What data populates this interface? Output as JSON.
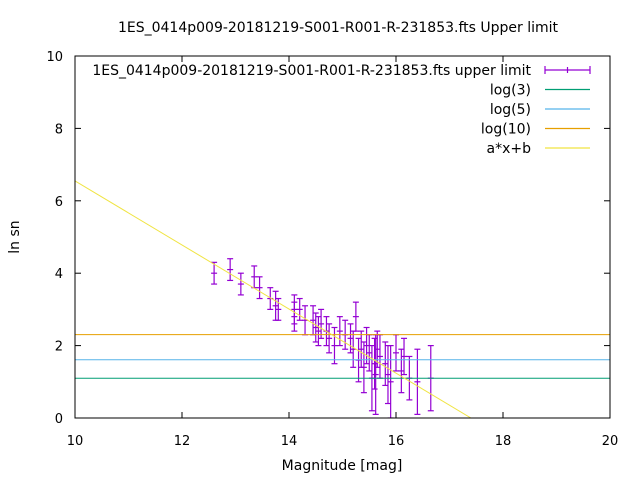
{
  "chart_data": {
    "type": "scatter",
    "title": "1ES_0414p009-20181219-S001-R001-R-231853.fts Upper limit",
    "xlabel": "Magnitude [mag]",
    "ylabel": "ln sn",
    "xlim": [
      10,
      20
    ],
    "ylim": [
      0,
      10
    ],
    "grid": false,
    "legend_placement": "top-right",
    "x_ticks": [
      "10",
      "12",
      "14",
      "16",
      "18",
      "20"
    ],
    "y_ticks": [
      "0",
      "2",
      "4",
      "6",
      "8",
      "10"
    ],
    "series": [
      {
        "name": "1ES_0414p009-20181219-S001-R001-R-231853.fts upper limit",
        "kind": "errorbar",
        "color": "#9400d3",
        "points": [
          [
            12.6,
            4.0,
            0.3
          ],
          [
            12.9,
            4.1,
            0.3
          ],
          [
            13.1,
            3.7,
            0.3
          ],
          [
            13.35,
            3.9,
            0.3
          ],
          [
            13.45,
            3.6,
            0.3
          ],
          [
            13.65,
            3.3,
            0.3
          ],
          [
            13.75,
            3.1,
            0.4
          ],
          [
            13.8,
            3.0,
            0.3
          ],
          [
            14.1,
            3.0,
            0.4
          ],
          [
            14.1,
            2.8,
            0.4
          ],
          [
            14.2,
            3.0,
            0.3
          ],
          [
            14.3,
            2.7,
            0.4
          ],
          [
            14.45,
            2.7,
            0.4
          ],
          [
            14.5,
            2.5,
            0.4
          ],
          [
            14.55,
            2.4,
            0.4
          ],
          [
            14.6,
            2.6,
            0.4
          ],
          [
            14.7,
            2.4,
            0.4
          ],
          [
            14.75,
            2.2,
            0.4
          ],
          [
            14.85,
            2.0,
            0.5
          ],
          [
            14.95,
            2.4,
            0.4
          ],
          [
            15.05,
            2.3,
            0.4
          ],
          [
            15.15,
            2.2,
            0.4
          ],
          [
            15.2,
            1.9,
            0.5
          ],
          [
            15.25,
            2.8,
            0.4
          ],
          [
            15.3,
            1.6,
            0.6
          ],
          [
            15.35,
            1.9,
            0.5
          ],
          [
            15.4,
            1.4,
            0.7
          ],
          [
            15.45,
            2.0,
            0.5
          ],
          [
            15.5,
            1.8,
            0.5
          ],
          [
            15.55,
            1.1,
            0.9
          ],
          [
            15.6,
            1.5,
            0.7
          ],
          [
            15.62,
            1.2,
            1.1
          ],
          [
            15.65,
            1.9,
            0.5
          ],
          [
            15.7,
            1.7,
            0.6
          ],
          [
            15.8,
            1.5,
            0.6
          ],
          [
            15.85,
            1.2,
            0.8
          ],
          [
            15.9,
            1.0,
            1.0
          ],
          [
            16.0,
            1.8,
            0.5
          ],
          [
            16.1,
            1.3,
            0.6
          ],
          [
            16.15,
            1.7,
            0.5
          ],
          [
            16.25,
            1.1,
            0.6
          ],
          [
            16.4,
            1.0,
            0.9
          ],
          [
            16.65,
            1.1,
            0.9
          ]
        ]
      },
      {
        "name": "log(3)",
        "kind": "hline",
        "color": "#009e73",
        "y": 1.0986
      },
      {
        "name": "log(5)",
        "kind": "hline",
        "color": "#56b4e9",
        "y": 1.6094
      },
      {
        "name": "log(10)",
        "kind": "hline",
        "color": "#e69f00",
        "y": 2.3026
      },
      {
        "name": "a*x+b",
        "kind": "line",
        "color": "#f0e442",
        "points": [
          [
            10,
            6.55
          ],
          [
            17.4,
            0
          ]
        ]
      }
    ]
  }
}
